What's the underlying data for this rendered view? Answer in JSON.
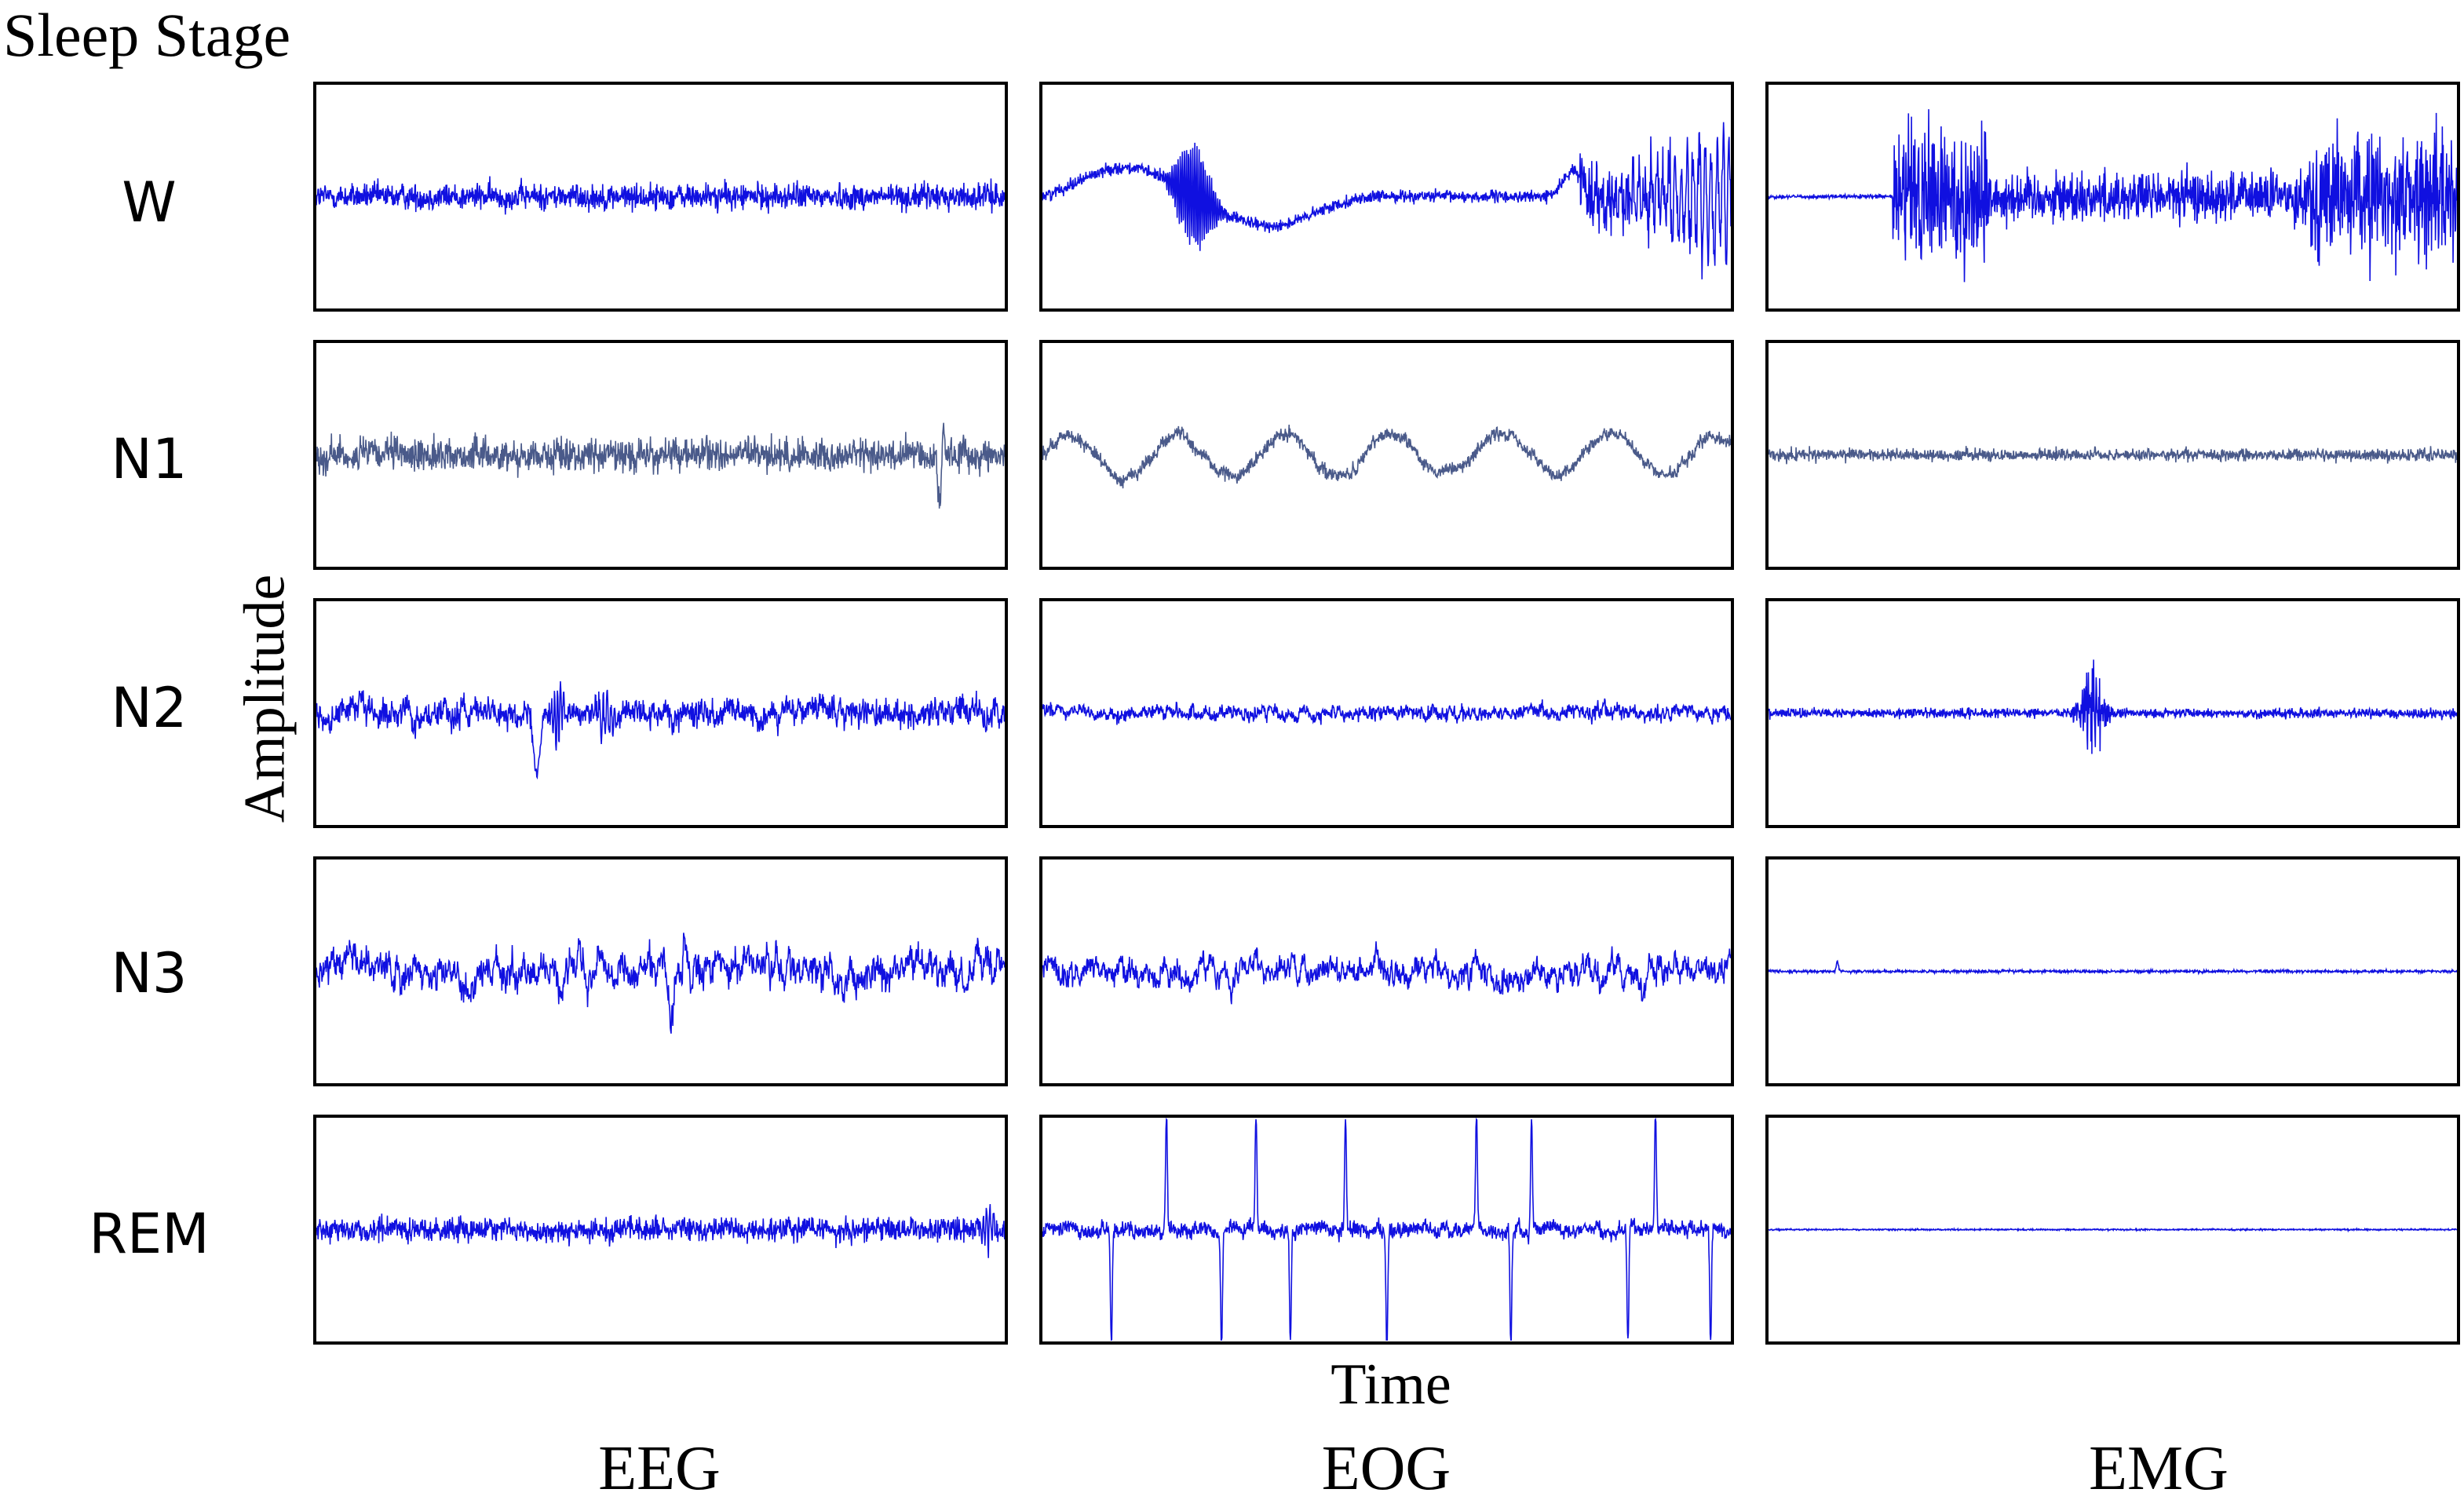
{
  "chart_data": {
    "type": "line",
    "title": "Sleep Stage",
    "xlabel": "Time",
    "ylabel": "Amplitude",
    "rows": [
      "W",
      "N1",
      "N2",
      "N3",
      "REM"
    ],
    "columns": [
      "EEG",
      "EOG",
      "EMG"
    ],
    "line_color": "#1010e0",
    "n1_line_color": "#4a5a8a",
    "panels": [
      {
        "stage": "W",
        "channel": "EEG",
        "pattern": "low-amplitude fast activity"
      },
      {
        "stage": "W",
        "channel": "EOG",
        "pattern": "large eye-movement deflections and artifacts"
      },
      {
        "stage": "W",
        "channel": "EMG",
        "pattern": "high-amplitude muscle bursts"
      },
      {
        "stage": "N1",
        "channel": "EEG",
        "pattern": "low-amplitude mixed frequency with late spike"
      },
      {
        "stage": "N1",
        "channel": "EOG",
        "pattern": "slow rolling eye movements"
      },
      {
        "stage": "N1",
        "channel": "EMG",
        "pattern": "reduced tonic activity"
      },
      {
        "stage": "N2",
        "channel": "EEG",
        "pattern": "K-complex and spindles"
      },
      {
        "stage": "N2",
        "channel": "EOG",
        "pattern": "low-amplitude activity"
      },
      {
        "stage": "N2",
        "channel": "EMG",
        "pattern": "low tone with brief burst"
      },
      {
        "stage": "N3",
        "channel": "EEG",
        "pattern": "high-amplitude slow waves"
      },
      {
        "stage": "N3",
        "channel": "EOG",
        "pattern": "slow waves"
      },
      {
        "stage": "N3",
        "channel": "EMG",
        "pattern": "very low tone"
      },
      {
        "stage": "REM",
        "channel": "EEG",
        "pattern": "low-amplitude mixed frequency"
      },
      {
        "stage": "REM",
        "channel": "EOG",
        "pattern": "rapid eye movements"
      },
      {
        "stage": "REM",
        "channel": "EMG",
        "pattern": "atonia"
      }
    ]
  }
}
